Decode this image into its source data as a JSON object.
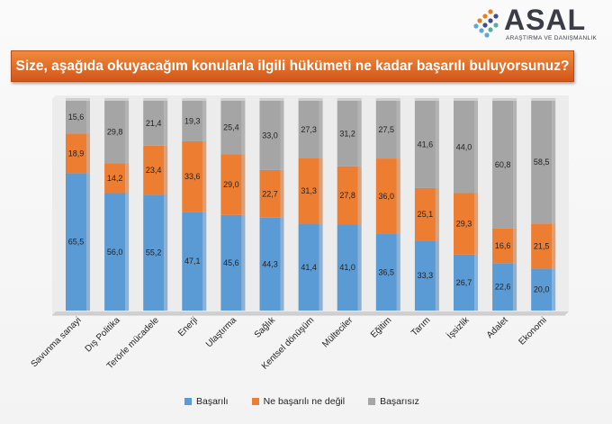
{
  "brand": {
    "name": "ASAL",
    "subtitle": "ARAŞTIRMA VE DANIŞMANLIK"
  },
  "chart_data": {
    "type": "bar",
    "stacked": true,
    "percent_stacked": true,
    "title": "Size, aşağıda okuyacağım konularla ilgili hükümeti ne kadar başarılı buluyorsunuz?",
    "categories": [
      "Savunma sanayi",
      "Dış Politika",
      "Terörle mücadele",
      "Enerji",
      "Ulaştırma",
      "Sağlık",
      "Kentsel dönüşüm",
      "Mülteciler",
      "Eğitim",
      "Tarım",
      "İşsizlik",
      "Adalet",
      "Ekonomi"
    ],
    "series": [
      {
        "name": "Başarılı",
        "color": "#5b9bd5",
        "values": [
          65.5,
          56.0,
          55.2,
          47.1,
          45.6,
          44.3,
          41.4,
          41.0,
          36.5,
          33.3,
          26.7,
          22.6,
          20.0
        ],
        "labels": [
          "65,5",
          "56,0",
          "55,2",
          "47,1",
          "45,6",
          "44,3",
          "41,4",
          "41,0",
          "36,5",
          "33,3",
          "26,7",
          "22,6",
          "20,0"
        ]
      },
      {
        "name": "Ne başarılı ne değil",
        "color": "#ed7d31",
        "values": [
          18.9,
          14.2,
          23.4,
          33.6,
          29.0,
          22.7,
          31.3,
          27.8,
          36.0,
          25.1,
          29.3,
          16.6,
          21.5
        ],
        "labels": [
          "18,9",
          "14,2",
          "23,4",
          "33,6",
          "29,0",
          "22,7",
          "31,3",
          "27,8",
          "36,0",
          "25,1",
          "29,3",
          "16,6",
          "21,5"
        ]
      },
      {
        "name": "Başarısız",
        "color": "#a5a5a5",
        "values": [
          15.6,
          29.8,
          21.4,
          19.3,
          25.4,
          33.0,
          27.3,
          31.2,
          27.5,
          41.6,
          44.0,
          60.8,
          58.5
        ],
        "labels": [
          "15,6",
          "29,8",
          "21,4",
          "19,3",
          "25,4",
          "33,0",
          "27,3",
          "31,2",
          "27,5",
          "41,6",
          "44,0",
          "60,8",
          "58,5"
        ]
      }
    ],
    "legend_position": "bottom",
    "grid": false
  }
}
